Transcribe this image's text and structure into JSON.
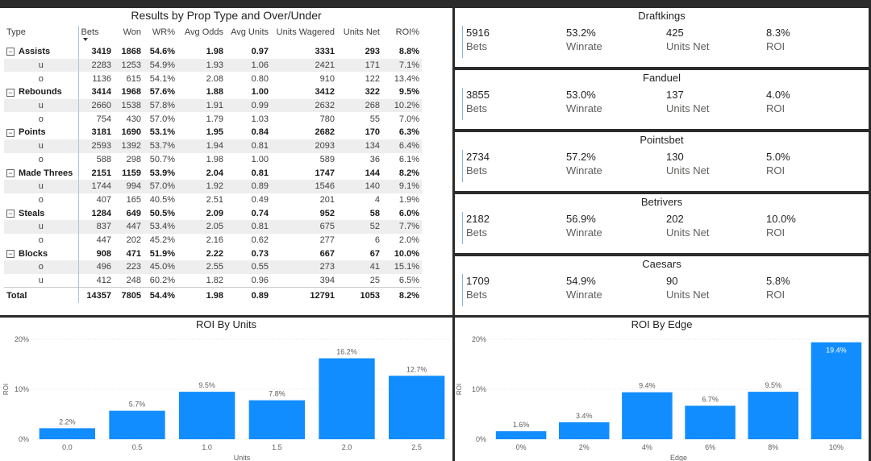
{
  "table": {
    "title": "Results by Prop Type and Over/Under",
    "columns": [
      "Type",
      "Bets",
      "Won",
      "WR%",
      "Avg Odds",
      "Avg Units",
      "Units Wagered",
      "Units Net",
      "ROI%"
    ],
    "rows": [
      {
        "kind": "group",
        "cells": [
          "Assists",
          "3419",
          "1868",
          "54.6%",
          "1.98",
          "0.97",
          "3331",
          "293",
          "8.8%"
        ]
      },
      {
        "kind": "sub",
        "cells": [
          "u",
          "2283",
          "1253",
          "54.9%",
          "1.93",
          "1.06",
          "2421",
          "171",
          "7.1%"
        ]
      },
      {
        "kind": "sub",
        "cells": [
          "o",
          "1136",
          "615",
          "54.1%",
          "2.08",
          "0.80",
          "910",
          "122",
          "13.4%"
        ]
      },
      {
        "kind": "group",
        "cells": [
          "Rebounds",
          "3414",
          "1968",
          "57.6%",
          "1.88",
          "1.00",
          "3412",
          "322",
          "9.5%"
        ]
      },
      {
        "kind": "sub",
        "cells": [
          "u",
          "2660",
          "1538",
          "57.8%",
          "1.91",
          "0.99",
          "2632",
          "268",
          "10.2%"
        ]
      },
      {
        "kind": "sub",
        "cells": [
          "o",
          "754",
          "430",
          "57.0%",
          "1.79",
          "1.03",
          "780",
          "55",
          "7.0%"
        ]
      },
      {
        "kind": "group",
        "cells": [
          "Points",
          "3181",
          "1690",
          "53.1%",
          "1.95",
          "0.84",
          "2682",
          "170",
          "6.3%"
        ]
      },
      {
        "kind": "sub",
        "cells": [
          "u",
          "2593",
          "1392",
          "53.7%",
          "1.94",
          "0.81",
          "2093",
          "134",
          "6.4%"
        ]
      },
      {
        "kind": "sub",
        "cells": [
          "o",
          "588",
          "298",
          "50.7%",
          "1.98",
          "1.00",
          "589",
          "36",
          "6.1%"
        ]
      },
      {
        "kind": "group",
        "cells": [
          "Made Threes",
          "2151",
          "1159",
          "53.9%",
          "2.04",
          "0.81",
          "1747",
          "144",
          "8.2%"
        ]
      },
      {
        "kind": "sub",
        "cells": [
          "u",
          "1744",
          "994",
          "57.0%",
          "1.92",
          "0.89",
          "1546",
          "140",
          "9.1%"
        ]
      },
      {
        "kind": "sub",
        "cells": [
          "o",
          "407",
          "165",
          "40.5%",
          "2.51",
          "0.49",
          "201",
          "4",
          "1.9%"
        ]
      },
      {
        "kind": "group",
        "cells": [
          "Steals",
          "1284",
          "649",
          "50.5%",
          "2.09",
          "0.74",
          "952",
          "58",
          "6.0%"
        ]
      },
      {
        "kind": "sub",
        "cells": [
          "u",
          "837",
          "447",
          "53.4%",
          "2.05",
          "0.81",
          "675",
          "52",
          "7.7%"
        ]
      },
      {
        "kind": "sub",
        "cells": [
          "o",
          "447",
          "202",
          "45.2%",
          "2.16",
          "0.62",
          "277",
          "6",
          "2.0%"
        ]
      },
      {
        "kind": "group",
        "cells": [
          "Blocks",
          "908",
          "471",
          "51.9%",
          "2.22",
          "0.73",
          "667",
          "67",
          "10.0%"
        ]
      },
      {
        "kind": "sub",
        "cells": [
          "o",
          "496",
          "223",
          "45.0%",
          "2.55",
          "0.55",
          "273",
          "41",
          "15.1%"
        ]
      },
      {
        "kind": "sub",
        "cells": [
          "u",
          "412",
          "248",
          "60.2%",
          "1.82",
          "0.96",
          "394",
          "25",
          "6.5%"
        ]
      }
    ],
    "total": [
      "Total",
      "14357",
      "7805",
      "54.4%",
      "1.98",
      "0.89",
      "12791",
      "1053",
      "8.2%"
    ]
  },
  "sportsbooks": [
    {
      "name": "Draftkings",
      "bets": "5916",
      "winrate": "53.2%",
      "units_net": "425",
      "roi": "8.3%"
    },
    {
      "name": "Fanduel",
      "bets": "3855",
      "winrate": "53.0%",
      "units_net": "137",
      "roi": "4.0%"
    },
    {
      "name": "Pointsbet",
      "bets": "2734",
      "winrate": "57.2%",
      "units_net": "130",
      "roi": "5.0%"
    },
    {
      "name": "Betrivers",
      "bets": "2182",
      "winrate": "56.9%",
      "units_net": "202",
      "roi": "10.0%"
    },
    {
      "name": "Caesars",
      "bets": "1709",
      "winrate": "54.9%",
      "units_net": "90",
      "roi": "5.8%"
    }
  ],
  "card_labels": {
    "bets": "Bets",
    "winrate": "Winrate",
    "units_net": "Units Net",
    "roi": "ROI"
  },
  "chart_data": [
    {
      "type": "bar",
      "title": "ROI By Units",
      "xlabel": "Units",
      "ylabel": "ROI",
      "categories": [
        "0.0",
        "0.5",
        "1.0",
        "1.5",
        "2.0",
        "2.5"
      ],
      "values": [
        2.2,
        5.7,
        9.5,
        7.8,
        16.2,
        12.7
      ],
      "data_labels": [
        "2.2%",
        "5.7%",
        "9.5%",
        "7.8%",
        "16.2%",
        "12.7%"
      ],
      "yticks": [
        "0%",
        "10%",
        "20%"
      ],
      "ylim": [
        0,
        20
      ],
      "color": "#118DFF"
    },
    {
      "type": "bar",
      "title": "ROI By Edge",
      "xlabel": "Edge",
      "ylabel": "ROI",
      "categories": [
        "0%",
        "2%",
        "4%",
        "6%",
        "8%",
        "10%"
      ],
      "values": [
        1.6,
        3.4,
        9.4,
        6.7,
        9.5,
        19.4
      ],
      "data_labels": [
        "1.6%",
        "3.4%",
        "9.4%",
        "6.7%",
        "9.5%",
        "19.4%"
      ],
      "yticks": [
        "0%",
        "10%",
        "20%"
      ],
      "ylim": [
        0,
        20
      ],
      "color": "#118DFF"
    }
  ]
}
